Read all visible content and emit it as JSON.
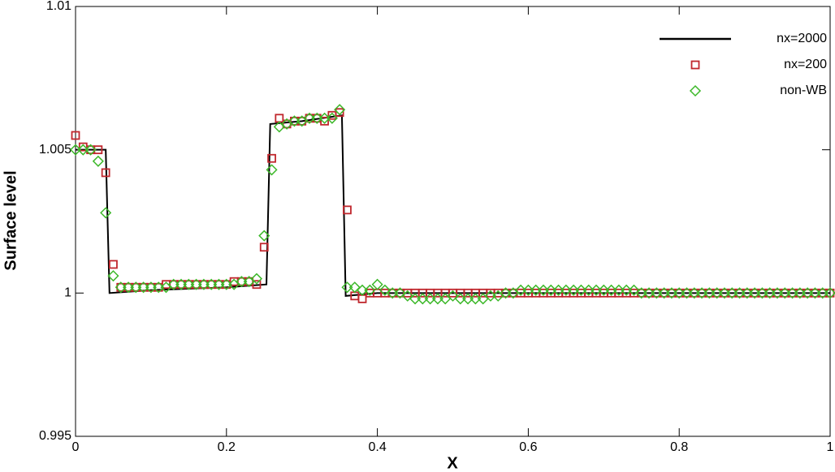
{
  "chart_data": {
    "type": "line",
    "xlabel": "X",
    "ylabel": "Surface level",
    "xlim": [
      0,
      1
    ],
    "ylim": [
      0.995,
      1.01
    ],
    "xticks": [
      0,
      0.2,
      0.4,
      0.6,
      0.8,
      1
    ],
    "yticks": [
      0.995,
      1,
      1.005,
      1.01
    ],
    "legend": "upper right",
    "series": [
      {
        "name": "nx=2000",
        "color": "#000000",
        "marker": "line",
        "x": [
          0,
          0.04,
          0.045,
          0.1,
          0.2,
          0.253,
          0.258,
          0.3,
          0.353,
          0.358,
          0.4,
          1
        ],
        "values": [
          1.005,
          1.005,
          1.0,
          1.0001,
          1.0002,
          1.0003,
          1.0059,
          1.006,
          1.0062,
          0.9999,
          1.0,
          1.0
        ]
      },
      {
        "name": "nx=200",
        "color": "#c0272d",
        "marker": "square",
        "x": [
          0,
          0.01,
          0.02,
          0.03,
          0.04,
          0.05,
          0.06,
          0.07,
          0.08,
          0.09,
          0.1,
          0.11,
          0.12,
          0.13,
          0.14,
          0.15,
          0.16,
          0.17,
          0.18,
          0.19,
          0.2,
          0.21,
          0.22,
          0.23,
          0.24,
          0.25,
          0.26,
          0.27,
          0.28,
          0.29,
          0.3,
          0.31,
          0.32,
          0.33,
          0.34,
          0.35,
          0.36,
          0.37,
          0.38,
          0.39,
          0.4,
          0.41,
          0.42,
          0.43,
          0.44,
          0.45,
          0.46,
          0.47,
          0.48,
          0.49,
          0.5,
          0.51,
          0.52,
          0.53,
          0.54,
          0.55,
          0.56,
          0.57,
          0.58,
          0.59,
          0.6,
          0.61,
          0.62,
          0.63,
          0.64,
          0.65,
          0.66,
          0.67,
          0.68,
          0.69,
          0.7,
          0.71,
          0.72,
          0.73,
          0.74,
          0.75,
          0.76,
          0.77,
          0.78,
          0.79,
          0.8,
          0.81,
          0.82,
          0.83,
          0.84,
          0.85,
          0.86,
          0.87,
          0.88,
          0.89,
          0.9,
          0.91,
          0.92,
          0.93,
          0.94,
          0.95,
          0.96,
          0.97,
          0.98,
          0.99,
          1
        ],
        "values": [
          1.0055,
          1.0051,
          1.005,
          1.005,
          1.0042,
          1.001,
          1.0002,
          1.0002,
          1.0002,
          1.0002,
          1.0002,
          1.0002,
          1.0003,
          1.0003,
          1.0003,
          1.0003,
          1.0003,
          1.0003,
          1.0003,
          1.0003,
          1.0003,
          1.0004,
          1.0004,
          1.0004,
          1.0003,
          1.0016,
          1.0047,
          1.0061,
          1.0059,
          1.006,
          1.006,
          1.0061,
          1.0061,
          1.006,
          1.0062,
          1.0063,
          1.0029,
          0.9999,
          0.9998,
          1.0,
          1.0,
          1.0,
          1.0,
          1.0,
          1.0,
          1.0,
          1.0,
          1.0,
          1.0,
          1.0,
          1.0,
          1.0,
          1.0,
          1.0,
          1.0,
          1.0,
          1.0,
          1.0,
          1.0,
          1.0,
          1.0,
          1.0,
          1.0,
          1.0,
          1.0,
          1.0,
          1.0,
          1.0,
          1.0,
          1.0,
          1.0,
          1.0,
          1.0,
          1.0,
          1.0,
          1.0,
          1.0,
          1.0,
          1.0,
          1.0,
          1.0,
          1.0,
          1.0,
          1.0,
          1.0,
          1.0,
          1.0,
          1.0,
          1.0,
          1.0,
          1.0,
          1.0,
          1.0,
          1.0,
          1.0,
          1.0,
          1.0,
          1.0,
          1.0,
          1.0,
          1.0
        ]
      },
      {
        "name": "non-WB",
        "color": "#3cb829",
        "marker": "diamond",
        "x": [
          0,
          0.01,
          0.02,
          0.03,
          0.04,
          0.05,
          0.06,
          0.07,
          0.08,
          0.09,
          0.1,
          0.11,
          0.12,
          0.13,
          0.14,
          0.15,
          0.16,
          0.17,
          0.18,
          0.19,
          0.2,
          0.21,
          0.22,
          0.23,
          0.24,
          0.25,
          0.26,
          0.27,
          0.28,
          0.29,
          0.3,
          0.31,
          0.32,
          0.33,
          0.34,
          0.35,
          0.36,
          0.37,
          0.38,
          0.39,
          0.4,
          0.41,
          0.42,
          0.43,
          0.44,
          0.45,
          0.46,
          0.47,
          0.48,
          0.49,
          0.5,
          0.51,
          0.52,
          0.53,
          0.54,
          0.55,
          0.56,
          0.57,
          0.58,
          0.59,
          0.6,
          0.61,
          0.62,
          0.63,
          0.64,
          0.65,
          0.66,
          0.67,
          0.68,
          0.69,
          0.7,
          0.71,
          0.72,
          0.73,
          0.74,
          0.75,
          0.76,
          0.77,
          0.78,
          0.79,
          0.8,
          0.81,
          0.82,
          0.83,
          0.84,
          0.85,
          0.86,
          0.87,
          0.88,
          0.89,
          0.9,
          0.91,
          0.92,
          0.93,
          0.94,
          0.95,
          0.96,
          0.97,
          0.98,
          0.99,
          1
        ],
        "values": [
          1.005,
          1.005,
          1.005,
          1.0046,
          1.0028,
          1.0006,
          1.0002,
          1.0002,
          1.0002,
          1.0002,
          1.0002,
          1.0002,
          1.0002,
          1.0003,
          1.0003,
          1.0003,
          1.0003,
          1.0003,
          1.0003,
          1.0003,
          1.0003,
          1.0003,
          1.0004,
          1.0004,
          1.0005,
          1.002,
          1.0043,
          1.0058,
          1.0059,
          1.006,
          1.006,
          1.0061,
          1.0061,
          1.0061,
          1.0061,
          1.0064,
          1.0002,
          1.0002,
          1.0001,
          1.0001,
          1.0003,
          1.0001,
          1.0,
          1.0,
          0.9999,
          0.9998,
          0.9998,
          0.9998,
          0.9998,
          0.9998,
          0.9999,
          0.9998,
          0.9998,
          0.9998,
          0.9998,
          0.9999,
          0.9999,
          1.0,
          1.0,
          1.0001,
          1.0001,
          1.0001,
          1.0001,
          1.0001,
          1.0001,
          1.0001,
          1.0001,
          1.0001,
          1.0001,
          1.0001,
          1.0001,
          1.0001,
          1.0001,
          1.0001,
          1.0001,
          1.0,
          1.0,
          1.0,
          1.0,
          1.0,
          1.0,
          1.0,
          1.0,
          1.0,
          1.0,
          1.0,
          1.0,
          1.0,
          1.0,
          1.0,
          1.0,
          1.0,
          1.0,
          1.0,
          1.0,
          1.0,
          1.0,
          1.0,
          1.0,
          1.0,
          1.0
        ]
      }
    ]
  }
}
